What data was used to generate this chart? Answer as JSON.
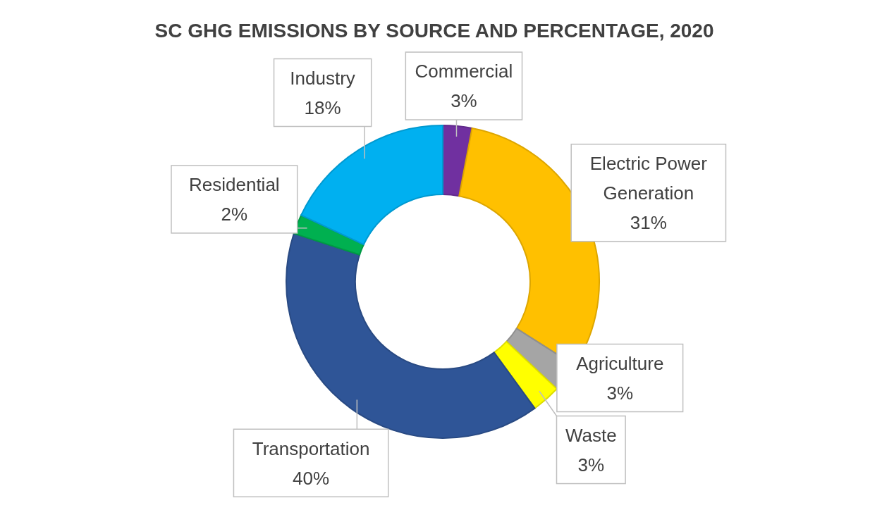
{
  "chart_data": {
    "type": "donut",
    "title": "SC GHG EMISSIONS BY SOURCE AND PERCENTAGE, 2020",
    "categories": [
      "Commercial",
      "Electric Power Generation",
      "Agriculture",
      "Waste",
      "Transportation",
      "Residential",
      "Industry"
    ],
    "values": [
      3,
      31,
      3,
      3,
      40,
      2,
      18
    ],
    "value_labels": [
      "3%",
      "31%",
      "3%",
      "3%",
      "40%",
      "2%",
      "18%"
    ],
    "colors": [
      "#7030a0",
      "#ffc000",
      "#a5a5a5",
      "#ffff00",
      "#2f5597",
      "#00b050",
      "#00b0f0"
    ]
  }
}
